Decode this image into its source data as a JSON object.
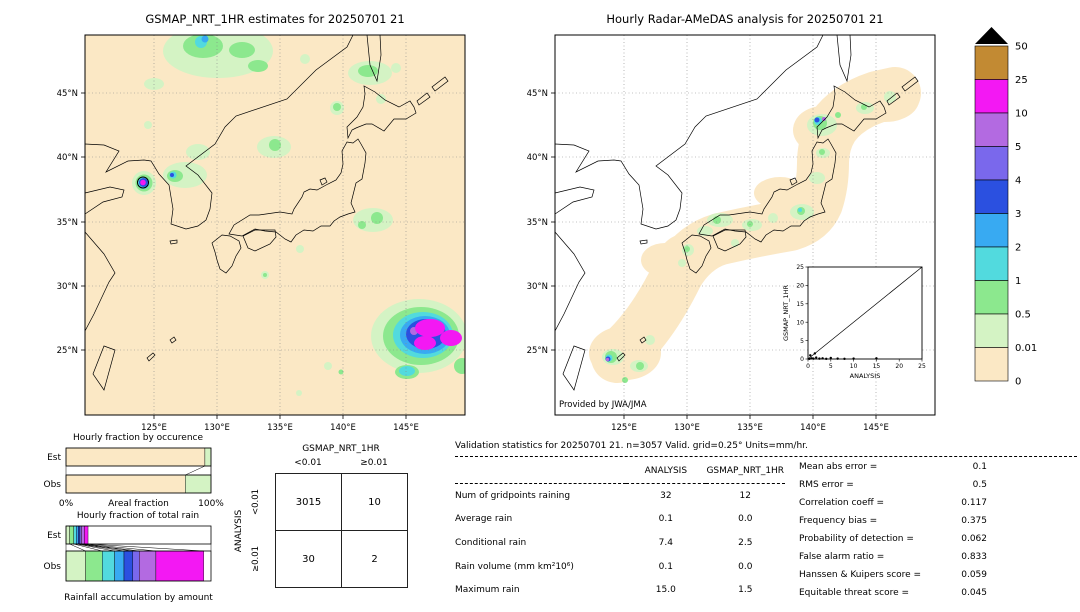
{
  "left_map": {
    "title": "GSMAP_NRT_1HR estimates for 20250701 21",
    "lat_ticks": [
      "45°N",
      "40°N",
      "35°N",
      "30°N",
      "25°N"
    ],
    "lon_ticks": [
      "125°E",
      "130°E",
      "135°E",
      "140°E",
      "145°E"
    ]
  },
  "right_map": {
    "title": "Hourly Radar-AMeDAS analysis for 20250701 21",
    "lat_ticks": [
      "45°N",
      "40°N",
      "35°N",
      "30°N",
      "25°N"
    ],
    "lon_ticks": [
      "125°E",
      "130°E",
      "135°E",
      "140°E",
      "145°E"
    ],
    "credit": "Provided by JWA/JMA",
    "inset": {
      "xlabel": "ANALYSIS",
      "ylabel": "GSMAP_NRT_1HR",
      "ticks": [
        "0",
        "5",
        "10",
        "15",
        "20",
        "25"
      ],
      "points": [
        [
          0.3,
          0.05
        ],
        [
          0.8,
          0.2
        ],
        [
          1.2,
          0.1
        ],
        [
          1.8,
          0.4
        ],
        [
          2.5,
          0.1
        ],
        [
          3.2,
          0.2
        ],
        [
          4,
          0.05
        ],
        [
          5,
          0.3
        ],
        [
          6.5,
          0.1
        ],
        [
          8,
          0.05
        ],
        [
          10,
          0.1
        ],
        [
          15,
          0.2
        ],
        [
          1.5,
          1.5
        ],
        [
          0.5,
          1.0
        ]
      ]
    }
  },
  "colorbar": {
    "labels": [
      "50",
      "25",
      "10",
      "5",
      "4",
      "3",
      "2",
      "1",
      "0.5",
      "0.01",
      "0"
    ],
    "colors_top_to_bottom": [
      "#c28a33",
      "#f318f3",
      "#b36ae1",
      "#7a68ec",
      "#2b50e0",
      "#38aaf2",
      "#52dade",
      "#8ce88e",
      "#d4f3c4",
      "#fbe8c5"
    ],
    "overflow_color": "#000000",
    "units": "mm/hr"
  },
  "occurrence_chart": {
    "title": "Hourly fraction by occurence",
    "xlabel": "Areal fraction",
    "x_min_label": "0%",
    "x_max_label": "100%",
    "rows": [
      {
        "label": "Est",
        "segments": [
          {
            "color": "#fbe8c5",
            "frac": 0.958
          },
          {
            "color": "#d4f3c4",
            "frac": 0.042
          }
        ]
      },
      {
        "label": "Obs",
        "segments": [
          {
            "color": "#fbe8c5",
            "frac": 0.823
          },
          {
            "color": "#d4f3c4",
            "frac": 0.177
          }
        ]
      }
    ]
  },
  "totalrain_chart": {
    "title": "Hourly fraction of total rain",
    "xlabel": "Rainfall accumulation by amount",
    "rows": [
      {
        "label": "Est",
        "segments": [
          {
            "color": "#d4f3c4",
            "frac": 0.025
          },
          {
            "color": "#8ce88e",
            "frac": 0.028
          },
          {
            "color": "#52dade",
            "frac": 0.018
          },
          {
            "color": "#38aaf2",
            "frac": 0.013
          },
          {
            "color": "#2b50e0",
            "frac": 0.012
          },
          {
            "color": "#7a68ec",
            "frac": 0.01
          },
          {
            "color": "#b36ae1",
            "frac": 0.02
          },
          {
            "color": "#f318f3",
            "frac": 0.026
          }
        ]
      },
      {
        "label": "Obs",
        "segments": [
          {
            "color": "#d4f3c4",
            "frac": 0.135
          },
          {
            "color": "#8ce88e",
            "frac": 0.115
          },
          {
            "color": "#52dade",
            "frac": 0.085
          },
          {
            "color": "#38aaf2",
            "frac": 0.065
          },
          {
            "color": "#2b50e0",
            "frac": 0.06
          },
          {
            "color": "#7a68ec",
            "frac": 0.045
          },
          {
            "color": "#b36ae1",
            "frac": 0.115
          },
          {
            "color": "#f318f3",
            "frac": 0.33
          }
        ]
      }
    ]
  },
  "contingency": {
    "col_group_label": "GSMAP_NRT_1HR",
    "row_group_label": "ANALYSIS",
    "col_labels": [
      "<0.01",
      "≥0.01"
    ],
    "row_labels": [
      "<0.01",
      "≥0.01"
    ],
    "values": [
      [
        "3015",
        "10"
      ],
      [
        "30",
        "2"
      ]
    ]
  },
  "stats": {
    "title": "Validation statistics for 20250701 21. n=3057 Valid. grid=0.25° Units=mm/hr.",
    "col_headers": [
      "ANALYSIS",
      "GSMAP_NRT_1HR"
    ],
    "rows": [
      {
        "label": "Num of gridpoints raining",
        "analysis": "32",
        "gsmap": "12"
      },
      {
        "label": "Average rain",
        "analysis": "0.1",
        "gsmap": "0.0"
      },
      {
        "label": "Conditional rain",
        "analysis": "7.4",
        "gsmap": "2.5"
      },
      {
        "label": "Rain volume (mm km²10⁶)",
        "analysis": "0.1",
        "gsmap": "0.0"
      },
      {
        "label": "Maximum rain",
        "analysis": "15.0",
        "gsmap": "1.5"
      }
    ],
    "metrics": [
      {
        "label": "Mean abs error =",
        "value": "0.1"
      },
      {
        "label": "RMS error =",
        "value": "0.5"
      },
      {
        "label": "Correlation coeff =",
        "value": "0.117"
      },
      {
        "label": "Frequency bias =",
        "value": "0.375"
      },
      {
        "label": "Probability of detection =",
        "value": "0.062"
      },
      {
        "label": "False alarm ratio =",
        "value": "0.833"
      },
      {
        "label": "Hanssen & Kuipers score =",
        "value": "0.059"
      },
      {
        "label": "Equitable threat score =",
        "value": "0.045"
      }
    ]
  },
  "chart_data": [
    {
      "type": "heatmap",
      "title": "GSMAP_NRT_1HR estimates for 20250701 21",
      "x_ticks": [
        "125°E",
        "130°E",
        "135°E",
        "140°E",
        "145°E"
      ],
      "y_ticks": [
        "45°N",
        "40°N",
        "35°N",
        "30°N",
        "25°N"
      ],
      "units": "mm/hr",
      "scale_breaks": [
        0,
        0.01,
        0.5,
        1,
        2,
        3,
        4,
        5,
        10,
        25,
        50
      ]
    },
    {
      "type": "heatmap",
      "title": "Hourly Radar-AMeDAS analysis for 20250701 21",
      "x_ticks": [
        "125°E",
        "130°E",
        "135°E",
        "140°E",
        "145°E"
      ],
      "y_ticks": [
        "45°N",
        "40°N",
        "35°N",
        "30°N",
        "25°N"
      ],
      "units": "mm/hr",
      "scale_breaks": [
        0,
        0.01,
        0.5,
        1,
        2,
        3,
        4,
        5,
        10,
        25,
        50
      ]
    },
    {
      "type": "scatter",
      "xlabel": "ANALYSIS",
      "ylabel": "GSMAP_NRT_1HR",
      "xlim": [
        0,
        25
      ],
      "ylim": [
        0,
        25
      ],
      "diagonal_line": true,
      "points": [
        [
          0.3,
          0.05
        ],
        [
          0.8,
          0.2
        ],
        [
          1.2,
          0.1
        ],
        [
          1.8,
          0.4
        ],
        [
          2.5,
          0.1
        ],
        [
          3.2,
          0.2
        ],
        [
          4,
          0.05
        ],
        [
          5,
          0.3
        ],
        [
          6.5,
          0.1
        ],
        [
          8,
          0.05
        ],
        [
          10,
          0.1
        ],
        [
          15,
          0.2
        ],
        [
          1.5,
          1.5
        ],
        [
          0.5,
          1.0
        ]
      ]
    },
    {
      "type": "bar",
      "title": "Hourly fraction by occurence",
      "orientation": "horizontal-stacked",
      "categories": [
        "Est",
        "Obs"
      ],
      "xlabel": "Areal fraction",
      "xlim_labels": [
        "0%",
        "100%"
      ],
      "series": [
        {
          "name": "Est",
          "fractions": [
            0.958,
            0.042
          ]
        },
        {
          "name": "Obs",
          "fractions": [
            0.823,
            0.177
          ]
        }
      ]
    },
    {
      "type": "bar",
      "title": "Hourly fraction of total rain",
      "orientation": "horizontal-stacked",
      "categories": [
        "Est",
        "Obs"
      ],
      "xlabel": "Rainfall accumulation by amount",
      "series": [
        {
          "name": "Est",
          "fractions": [
            0.025,
            0.028,
            0.018,
            0.013,
            0.012,
            0.01,
            0.02,
            0.026
          ]
        },
        {
          "name": "Obs",
          "fractions": [
            0.135,
            0.115,
            0.085,
            0.065,
            0.06,
            0.045,
            0.115,
            0.33
          ]
        }
      ]
    },
    {
      "type": "table",
      "title": "Contingency table",
      "col_group": "GSMAP_NRT_1HR",
      "row_group": "ANALYSIS",
      "columns": [
        "<0.01",
        "≥0.01"
      ],
      "rows": [
        [
          "3015",
          "10"
        ],
        [
          "30",
          "2"
        ]
      ]
    },
    {
      "type": "table",
      "title": "Validation statistics for 20250701 21. n=3057 Valid. grid=0.25° Units=mm/hr.",
      "columns": [
        "",
        "ANALYSIS",
        "GSMAP_NRT_1HR"
      ],
      "rows": [
        [
          "Num of gridpoints raining",
          "32",
          "12"
        ],
        [
          "Average rain",
          "0.1",
          "0.0"
        ],
        [
          "Conditional rain",
          "7.4",
          "2.5"
        ],
        [
          "Rain volume (mm km²10⁶)",
          "0.1",
          "0.0"
        ],
        [
          "Maximum rain",
          "15.0",
          "1.5"
        ]
      ],
      "metrics": {
        "Mean abs error": 0.1,
        "RMS error": 0.5,
        "Correlation coeff": 0.117,
        "Frequency bias": 0.375,
        "Probability of detection": 0.062,
        "False alarm ratio": 0.833,
        "Hanssen & Kuipers score": 0.059,
        "Equitable threat score": 0.045
      }
    }
  ]
}
